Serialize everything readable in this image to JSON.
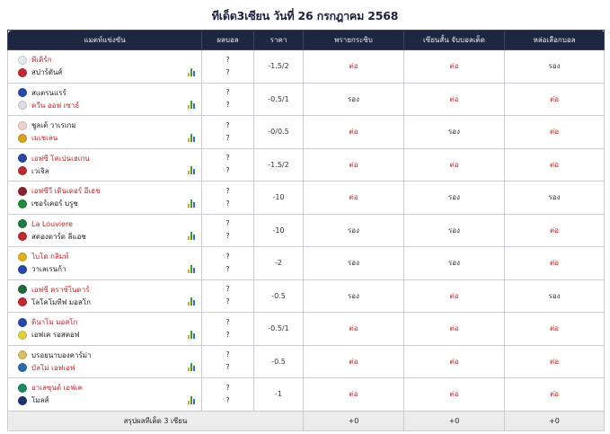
{
  "page": {
    "title": "ทีเด็ด3เซียน วันที่ 26 กรกฎาคม 2568"
  },
  "table": {
    "headers": {
      "match": "แมตท์แข่งขัน",
      "score": "ผลบอล",
      "price": "ราคา",
      "expert1": "พรายกระซิบ",
      "expert2": "เซียนสั้น จับบอลเต็ด",
      "expert3": "หล่อเลือกบอล"
    },
    "rows": [
      {
        "home": "พีเคิร์ก",
        "away": "สปาร์ตันส์",
        "fav": "home",
        "home_color": "#e6e8ee",
        "away_color": "#c2282f",
        "home_score": "?",
        "away_score": "?",
        "price": "-1.5/2",
        "picks": [
          "ต่อ",
          "ต่อ",
          "รอง"
        ]
      },
      {
        "home": "สแตรนแรร์",
        "away": "ควีน ออฟ เซาธ์",
        "fav": "away",
        "home_color": "#2b4aa8",
        "away_color": "#d9dde6",
        "home_score": "?",
        "away_score": "?",
        "price": "-0.5/1",
        "picks": [
          "รอง",
          "ต่อ",
          "ต่อ"
        ]
      },
      {
        "home": "ชูลเต้ วาเรเกม",
        "away": "เมเชเลน",
        "fav": "away",
        "home_color": "#f0d0d0",
        "away_color": "#d8a020",
        "home_score": "?",
        "away_score": "?",
        "price": "-0/0.5",
        "picks": [
          "ต่อ",
          "รอง",
          "ต่อ"
        ]
      },
      {
        "home": "เอฟซี โคเปนเฮเกน",
        "away": "เวเจิล",
        "fav": "home",
        "home_color": "#2a47a8",
        "away_color": "#c2282f",
        "home_score": "?",
        "away_score": "?",
        "price": "-1.5/2",
        "picks": [
          "ต่อ",
          "ต่อ",
          "ต่อ"
        ]
      },
      {
        "home": "เอฟซีวี เดินเดอร์ อีเฮช",
        "away": "เซอร์เคอร์ บรูช",
        "fav": "home",
        "home_color": "#8a2030",
        "away_color": "#1f8a3a",
        "home_score": "?",
        "away_score": "?",
        "price": "-10",
        "picks": [
          "ต่อ",
          "รอง",
          "รอง"
        ]
      },
      {
        "home": "La Louviere",
        "away": "สตองดาร์ด ลีแอช",
        "fav": "home",
        "home_color": "#1f7a45",
        "away_color": "#c2282f",
        "home_score": "?",
        "away_score": "?",
        "price": "-10",
        "picks": [
          "รอง",
          "รอง",
          "ต่อ"
        ]
      },
      {
        "home": "ไบโด กลิมท์",
        "away": "วาเลเรนก้า",
        "fav": "home",
        "home_color": "#e0b020",
        "away_color": "#2a47a8",
        "home_score": "?",
        "away_score": "?",
        "price": "-2",
        "picks": [
          "รอง",
          "รอง",
          "ต่อ"
        ]
      },
      {
        "home": "เอฟซี คราซ์โนดาร์",
        "away": "โลโคโมทีฟ มอสโก",
        "fav": "home",
        "home_color": "#1f6a3a",
        "away_color": "#c2282f",
        "home_score": "?",
        "away_score": "?",
        "price": "-0.5",
        "picks": [
          "รอง",
          "ต่อ",
          "รอง"
        ]
      },
      {
        "home": "ดินาโม มอสโก",
        "away": "เอฟเค รอสตอฟ",
        "fav": "home",
        "home_color": "#2a47a8",
        "away_color": "#e0d040",
        "home_score": "?",
        "away_score": "?",
        "price": "-0.5/1",
        "picks": [
          "ต่อ",
          "ต่อ",
          "ต่อ"
        ]
      },
      {
        "home": "บรอยนาบองคาร์ม่า",
        "away": "บัลโม่ เอฟเอฟ",
        "fav": "away",
        "home_color": "#d8c060",
        "away_color": "#2a6ab0",
        "home_score": "?",
        "away_score": "?",
        "price": "-0.5",
        "picks": [
          "ต่อ",
          "ต่อ",
          "ต่อ"
        ]
      },
      {
        "home": "อาเลซุนด์ เอฟเค",
        "away": "โมลส์",
        "fav": "home",
        "home_color": "#1f8a60",
        "away_color": "#203070",
        "home_score": "?",
        "away_score": "?",
        "price": "-1",
        "picks": [
          "ต่อ",
          "ต่อ",
          "ต่อ"
        ]
      }
    ],
    "summary": {
      "label": "สรุปผลทีเด็ด 3 เซียน",
      "expert1": "+0",
      "expert2": "+0",
      "expert3": "+0"
    }
  },
  "colors": {
    "header_bg": "#1e2741",
    "fav_text": "#c0282d",
    "pick_win": "#c0282d"
  }
}
